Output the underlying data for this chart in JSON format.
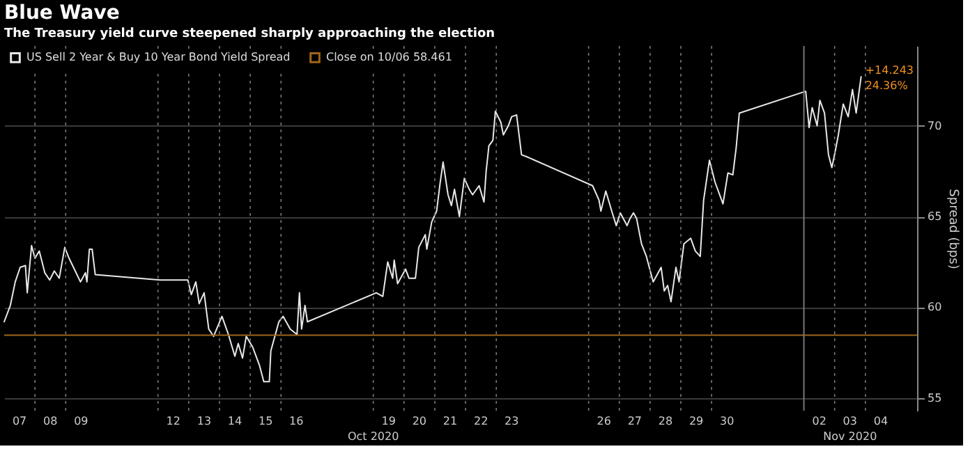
{
  "chart_data": {
    "type": "line",
    "title": "Blue Wave",
    "subtitle": "The Treasury yield curve steepened sharply approaching the election",
    "ylabel": "Spread (bps)",
    "xlim": [
      "2020-10-07T00:00",
      "2020-11-05T16:19"
    ],
    "ylim": [
      54.3,
      74.4
    ],
    "yticks": [
      55,
      60,
      65,
      70
    ],
    "xticks": [
      {
        "value": "2020-10-07T12:00",
        "label": "07"
      },
      {
        "value": "2020-10-08T12:00",
        "label": "08"
      },
      {
        "value": "2020-10-09T12:00",
        "label": "09"
      },
      {
        "value": "2020-10-12T12:00",
        "label": "12"
      },
      {
        "value": "2020-10-13T12:00",
        "label": "13"
      },
      {
        "value": "2020-10-14T12:00",
        "label": "14"
      },
      {
        "value": "2020-10-15T12:00",
        "label": "15"
      },
      {
        "value": "2020-10-16T12:00",
        "label": "16"
      },
      {
        "value": "2020-10-19T12:00",
        "label": "19"
      },
      {
        "value": "2020-10-20T12:00",
        "label": "20"
      },
      {
        "value": "2020-10-21T12:00",
        "label": "21"
      },
      {
        "value": "2020-10-22T12:00",
        "label": "22"
      },
      {
        "value": "2020-10-23T12:00",
        "label": "23"
      },
      {
        "value": "2020-10-26T12:00",
        "label": "26"
      },
      {
        "value": "2020-10-27T12:00",
        "label": "27"
      },
      {
        "value": "2020-10-28T12:00",
        "label": "28"
      },
      {
        "value": "2020-10-29T12:00",
        "label": "29"
      },
      {
        "value": "2020-10-30T12:00",
        "label": "30"
      },
      {
        "value": "2020-11-02T12:00",
        "label": "02"
      },
      {
        "value": "2020-11-03T12:00",
        "label": "03"
      },
      {
        "value": "2020-11-04T12:00",
        "label": "04"
      },
      {
        "value": "2020-10-08T00:00",
        "label": null
      },
      {
        "value": "2020-10-09T00:00",
        "label": null
      },
      {
        "value": "2020-10-12T00:00",
        "label": null
      },
      {
        "value": "2020-10-13T00:00",
        "label": null
      },
      {
        "value": "2020-10-14T00:00",
        "label": null
      },
      {
        "value": "2020-10-15T00:00",
        "label": null
      },
      {
        "value": "2020-10-16T00:00",
        "label": null
      },
      {
        "value": "2020-10-19T00:00",
        "label": null
      },
      {
        "value": "2020-10-20T00:00",
        "label": null
      },
      {
        "value": "2020-10-21T00:00",
        "label": null
      },
      {
        "value": "2020-10-22T00:00",
        "label": null
      },
      {
        "value": "2020-10-23T00:00",
        "label": null
      },
      {
        "value": "2020-10-26T00:00",
        "label": null
      },
      {
        "value": "2020-10-27T00:00",
        "label": null
      },
      {
        "value": "2020-10-28T00:00",
        "label": null
      },
      {
        "value": "2020-10-29T00:00",
        "label": null
      },
      {
        "value": "2020-10-30T00:00",
        "label": null
      },
      {
        "value": "2020-11-03T00:00",
        "label": null
      },
      {
        "value": "2020-11-04T00:00",
        "label": null
      }
    ],
    "grid": true,
    "legend": "top left",
    "line_style": "solid",
    "series": [
      {
        "name": "US Sell 2 Year & Buy 10 Year Bond Yield Spread",
        "color": "#e8e8e8",
        "x": [
          "2020-10-07T00:00",
          "2020-10-07T04:48",
          "2020-10-07T08:38",
          "2020-10-07T12:29",
          "2020-10-07T16:34",
          "2020-10-07T18:00",
          "2020-10-07T21:22",
          "2020-10-08T00:00",
          "2020-10-08T03:22",
          "2020-10-08T07:41",
          "2020-10-08T11:31",
          "2020-10-08T15:07",
          "2020-10-08T18:58",
          "2020-10-08T23:17",
          "2020-10-09T02:38",
          "2020-10-09T11:31",
          "2020-10-09T15:22",
          "2020-10-09T16:34",
          "2020-10-09T18:29",
          "2020-10-09T20:38",
          "2020-10-09T23:02",
          "2020-10-12T01:41",
          "2020-10-12T23:17",
          "2020-10-13T02:00",
          "2020-10-13T05:31",
          "2020-10-13T08:10",
          "2020-10-13T12:00",
          "2020-10-13T15:36",
          "2020-10-13T19:26",
          "2020-10-14T01:55",
          "2020-10-14T06:58",
          "2020-10-14T12:00",
          "2020-10-14T14:38",
          "2020-10-14T18:00",
          "2020-10-14T20:53",
          "2020-10-15T01:55",
          "2020-10-15T07:12",
          "2020-10-15T10:34",
          "2020-10-15T14:53",
          "2020-10-15T16:05",
          "2020-10-15T22:19",
          "2020-10-16T01:41",
          "2020-10-16T07:12",
          "2020-10-16T12:29",
          "2020-10-16T14:24",
          "2020-10-16T16:05",
          "2020-10-16T18:43",
          "2020-10-16T20:38",
          "2020-10-19T02:24",
          "2020-10-19T07:26",
          "2020-10-19T11:17",
          "2020-10-19T15:07",
          "2020-10-19T16:19",
          "2020-10-19T18:58",
          "2020-10-20T01:12",
          "2020-10-20T03:50",
          "2020-10-20T08:53",
          "2020-10-20T11:31",
          "2020-10-20T16:34",
          "2020-10-20T17:46",
          "2020-10-20T21:36",
          "2020-10-21T01:26",
          "2020-10-21T04:05",
          "2020-10-21T06:29",
          "2020-10-21T10:19",
          "2020-10-21T12:58",
          "2020-10-21T15:22",
          "2020-10-21T19:12",
          "2020-10-21T23:02",
          "2020-10-22T02:53",
          "2020-10-22T05:31",
          "2020-10-22T10:34",
          "2020-10-22T14:24",
          "2020-10-22T16:05",
          "2020-10-22T18:14",
          "2020-10-22T21:20",
          "2020-10-22T23:17",
          "2020-10-23T03:30",
          "2020-10-23T05:30",
          "2020-10-23T09:22",
          "2020-10-23T12:00",
          "2020-10-23T15:50",
          "2020-10-23T19:41",
          "2020-10-23T23:31",
          "2020-10-26T03:07",
          "2020-10-26T08:10",
          "2020-10-26T09:36",
          "2020-10-26T13:26",
          "2020-10-26T18:29",
          "2020-10-26T21:36",
          "2020-10-27T00:43",
          "2020-10-27T06:00",
          "2020-10-27T08:24",
          "2020-10-27T11:02",
          "2020-10-27T13:26",
          "2020-10-27T17:17",
          "2020-10-27T21:07",
          "2020-10-28T02:24",
          "2020-10-28T08:38",
          "2020-10-28T11:02",
          "2020-10-28T13:41",
          "2020-10-28T16:19",
          "2020-10-28T20:10",
          "2020-10-28T22:34",
          "2020-10-29T02:24",
          "2020-10-29T07:41",
          "2020-10-29T11:17",
          "2020-10-29T15:07",
          "2020-10-29T17:46",
          "2020-10-29T22:19",
          "2020-10-30T02:38",
          "2020-10-30T08:53",
          "2020-10-30T12:43",
          "2020-10-30T16:34",
          "2020-10-30T19:12",
          "2020-10-30T21:36",
          "2020-11-02T01:26",
          "2020-11-02T04:05",
          "2020-11-02T06:29",
          "2020-11-02T10:19",
          "2020-11-02T12:29",
          "2020-11-02T16:05",
          "2020-11-02T19:12",
          "2020-11-02T21:50",
          "2020-11-03T00:29",
          "2020-11-03T02:53",
          "2020-11-03T06:43",
          "2020-11-03T10:34",
          "2020-11-03T13:55",
          "2020-11-03T16:48",
          "2020-11-03T20:38"
        ],
        "values": [
          59.2,
          60.1,
          61.4,
          62.2,
          62.3,
          60.8,
          63.4,
          62.7,
          63.1,
          61.9,
          61.5,
          62.0,
          61.6,
          63.3,
          62.7,
          61.4,
          61.9,
          61.4,
          63.2,
          63.2,
          61.8,
          61.5,
          61.5,
          60.7,
          61.4,
          60.2,
          60.8,
          58.8,
          58.4,
          59.5,
          58.5,
          57.3,
          58.0,
          57.2,
          58.4,
          57.8,
          56.8,
          55.9,
          55.9,
          57.6,
          59.2,
          59.5,
          58.8,
          58.5,
          60.8,
          58.8,
          60.1,
          59.2,
          60.8,
          60.6,
          62.5,
          61.6,
          62.6,
          61.3,
          62.1,
          61.6,
          61.6,
          63.3,
          64.0,
          63.2,
          64.7,
          65.3,
          66.8,
          68.0,
          66.2,
          65.6,
          66.5,
          65.0,
          67.1,
          66.5,
          66.2,
          66.7,
          65.8,
          67.5,
          68.9,
          69.2,
          70.8,
          70.2,
          69.5,
          70.0,
          70.5,
          70.6,
          68.4,
          68.3,
          66.7,
          65.9,
          65.3,
          66.4,
          65.2,
          64.5,
          65.2,
          64.5,
          64.9,
          65.2,
          64.9,
          63.5,
          62.8,
          61.4,
          62.2,
          60.9,
          61.2,
          60.3,
          62.2,
          61.4,
          63.5,
          63.8,
          63.1,
          62.8,
          65.9,
          68.1,
          66.9,
          65.7,
          67.4,
          67.3,
          68.8,
          70.7,
          71.9,
          69.9,
          71.0,
          70.0,
          71.4,
          70.7,
          68.4,
          67.7,
          68.6,
          69.5,
          71.2,
          70.5,
          72.0,
          70.7,
          72.7
        ]
      }
    ],
    "ref_lines": [
      {
        "axis": "y",
        "value": 58.461,
        "label": "Close on 10/06 58.461",
        "color": "#a0661a"
      },
      {
        "axis": "x",
        "value": "2020-11-02T00:00",
        "color": "#777777"
      }
    ],
    "annotations": [
      {
        "text": "+14.243",
        "x": "2020-11-03T20:38",
        "y": 72.7
      },
      {
        "text": "24.36%",
        "x": "2020-11-03T20:38",
        "y": 72.7
      },
      "Oct 2020",
      "Nov 2020"
    ]
  }
}
